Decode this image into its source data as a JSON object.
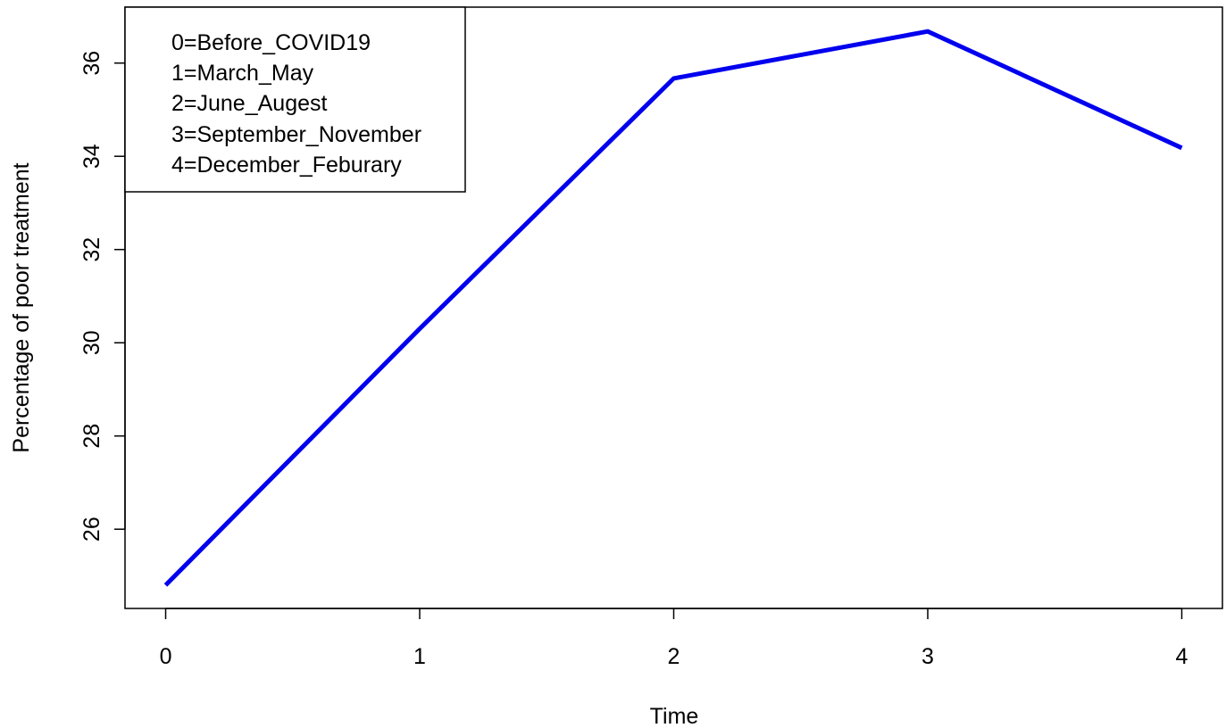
{
  "chart_data": {
    "type": "line",
    "title": "",
    "xlabel": "Time",
    "ylabel": "Percentage of poor treatment",
    "x": [
      0,
      1,
      2,
      3,
      4
    ],
    "series": [
      {
        "values": [
          24.8,
          30.3,
          35.67,
          36.68,
          34.18
        ],
        "color": "#0000ee"
      }
    ],
    "xlim": [
      -0.16,
      4.16
    ],
    "ylim": [
      24.3,
      37.2
    ],
    "x_ticks": [
      0,
      1,
      2,
      3,
      4
    ],
    "y_ticks": [
      26,
      28,
      30,
      32,
      34,
      36
    ],
    "grid": false,
    "legend": {
      "position": "top-left",
      "entries": [
        "0=Before_COVID19",
        "1=March_May",
        "2=June_Augest",
        "3=September_November",
        "4=December_Feburary"
      ]
    }
  }
}
